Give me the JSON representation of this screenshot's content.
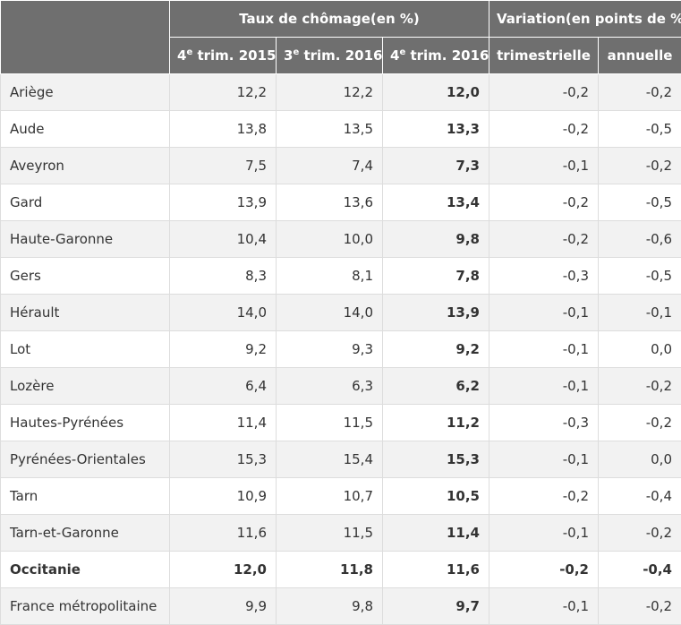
{
  "header": {
    "group_rate": "Taux de chômage(en %)",
    "group_variation": "Variation(en points de %)",
    "columns": [
      {
        "num": "4",
        "sup": "e",
        "rest": " trim. 2015"
      },
      {
        "num": "3",
        "sup": "e",
        "rest": " trim. 2016"
      },
      {
        "num": "4",
        "sup": "e",
        "rest": " trim. 2016"
      }
    ],
    "col_quarterly": "trimestrielle",
    "col_annual": "annuelle"
  },
  "rows": [
    {
      "name": "Ariège",
      "q4_2015": "12,2",
      "q3_2016": "12,2",
      "q4_2016": "12,0",
      "trim": "-0,2",
      "ann": "-0,2"
    },
    {
      "name": "Aude",
      "q4_2015": "13,8",
      "q3_2016": "13,5",
      "q4_2016": "13,3",
      "trim": "-0,2",
      "ann": "-0,5"
    },
    {
      "name": "Aveyron",
      "q4_2015": "7,5",
      "q3_2016": "7,4",
      "q4_2016": "7,3",
      "trim": "-0,1",
      "ann": "-0,2"
    },
    {
      "name": "Gard",
      "q4_2015": "13,9",
      "q3_2016": "13,6",
      "q4_2016": "13,4",
      "trim": "-0,2",
      "ann": "-0,5"
    },
    {
      "name": "Haute-Garonne",
      "q4_2015": "10,4",
      "q3_2016": "10,0",
      "q4_2016": "9,8",
      "trim": "-0,2",
      "ann": "-0,6"
    },
    {
      "name": "Gers",
      "q4_2015": "8,3",
      "q3_2016": "8,1",
      "q4_2016": "7,8",
      "trim": "-0,3",
      "ann": "-0,5"
    },
    {
      "name": "Hérault",
      "q4_2015": "14,0",
      "q3_2016": "14,0",
      "q4_2016": "13,9",
      "trim": "-0,1",
      "ann": "-0,1"
    },
    {
      "name": "Lot",
      "q4_2015": "9,2",
      "q3_2016": "9,3",
      "q4_2016": "9,2",
      "trim": "-0,1",
      "ann": "0,0"
    },
    {
      "name": "Lozère",
      "q4_2015": "6,4",
      "q3_2016": "6,3",
      "q4_2016": "6,2",
      "trim": "-0,1",
      "ann": "-0,2"
    },
    {
      "name": "Hautes-Pyrénées",
      "q4_2015": "11,4",
      "q3_2016": "11,5",
      "q4_2016": "11,2",
      "trim": "-0,3",
      "ann": "-0,2"
    },
    {
      "name": "Pyrénées-Orientales",
      "q4_2015": "15,3",
      "q3_2016": "15,4",
      "q4_2016": "15,3",
      "trim": "-0,1",
      "ann": "0,0"
    },
    {
      "name": "Tarn",
      "q4_2015": "10,9",
      "q3_2016": "10,7",
      "q4_2016": "10,5",
      "trim": "-0,2",
      "ann": "-0,4"
    },
    {
      "name": "Tarn-et-Garonne",
      "q4_2015": "11,6",
      "q3_2016": "11,5",
      "q4_2016": "11,4",
      "trim": "-0,1",
      "ann": "-0,2"
    },
    {
      "name": "Occitanie",
      "q4_2015": "12,0",
      "q3_2016": "11,8",
      "q4_2016": "11,6",
      "trim": "-0,2",
      "ann": "-0,4"
    },
    {
      "name": "France métropolitaine",
      "q4_2015": "9,9",
      "q3_2016": "9,8",
      "q4_2016": "9,7",
      "trim": "-0,1",
      "ann": "-0,2"
    }
  ]
}
